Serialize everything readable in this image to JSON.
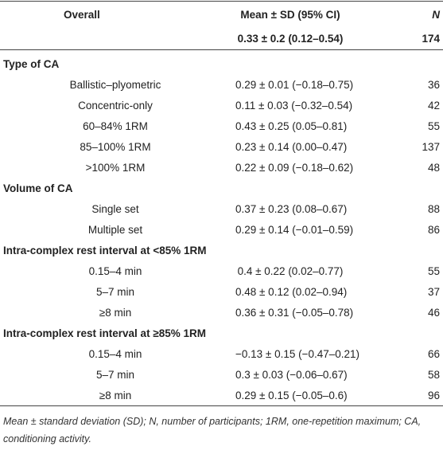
{
  "header": {
    "columns": [
      "Overall",
      "Mean ± SD (95% CI)",
      "N"
    ]
  },
  "overall": {
    "mean_sd": "0.33 ± 0.2 (0.12–0.54)",
    "n": 174
  },
  "sections": [
    {
      "title": "Type of CA",
      "rows": [
        {
          "label": "Ballistic–plyometric",
          "mean_sd": "0.29 ± 0.01 (−0.18–0.75)",
          "n": 36
        },
        {
          "label": "Concentric-only",
          "mean_sd": "0.11 ± 0.03 (−0.32–0.54)",
          "n": 42
        },
        {
          "label": "60–84% 1RM",
          "mean_sd": "0.43 ± 0.25 (0.05–0.81)",
          "n": 55
        },
        {
          "label": "85–100% 1RM",
          "mean_sd": "0.23 ± 0.14 (0.00–0.47)",
          "n": 137
        },
        {
          "label": ">100% 1RM",
          "mean_sd": "0.22 ± 0.09 (−0.18–0.62)",
          "n": 48
        }
      ]
    },
    {
      "title": "Volume of CA",
      "rows": [
        {
          "label": "Single set",
          "mean_sd": "0.37 ± 0.23 (0.08–0.67)",
          "n": 88
        },
        {
          "label": "Multiple set",
          "mean_sd": "0.29 ± 0.14 (−0.01–0.59)",
          "n": 86
        }
      ]
    },
    {
      "title": "Intra-complex rest interval at <85% 1RM",
      "rows": [
        {
          "label": "0.15–4 min",
          "mean_sd": "0.4 ± 0.22 (0.02–0.77)",
          "n": 55
        },
        {
          "label": "5–7 min",
          "mean_sd": "0.48 ± 0.12 (0.02–0.94)",
          "n": 37
        },
        {
          "label": "≥8 min",
          "mean_sd": "0.36 ± 0.31 (−0.05–0.78)",
          "n": 46
        }
      ]
    },
    {
      "title": "Intra-complex rest interval at ≥85% 1RM",
      "rows": [
        {
          "label": "0.15–4 min",
          "mean_sd": "−0.13 ± 0.15 (−0.47–0.21)",
          "n": 66
        },
        {
          "label": "5–7 min",
          "mean_sd": "0.3 ± 0.03 (−0.06–0.67)",
          "n": 58
        },
        {
          "label": "≥8 min",
          "mean_sd": "0.29 ± 0.15 (−0.05–0.6)",
          "n": 96
        }
      ]
    }
  ],
  "footnote": "Mean ± standard deviation (SD); N, number of participants; 1RM, one-repetition maximum; CA, conditioning activity."
}
